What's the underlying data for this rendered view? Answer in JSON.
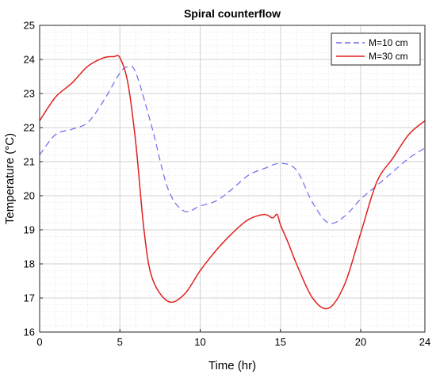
{
  "chart_data": {
    "type": "line",
    "title": "Spiral counterflow",
    "xlabel": "Time (hr)",
    "ylabel": "Temperature (°C)",
    "xlim": [
      0,
      24
    ],
    "ylim": [
      16,
      25
    ],
    "xticks": [
      0,
      5,
      10,
      15,
      20,
      24
    ],
    "yticks": [
      16,
      17,
      18,
      19,
      20,
      21,
      22,
      23,
      24,
      25
    ],
    "grid": true,
    "minor_grid": true,
    "legend_position": "top-right",
    "series": [
      {
        "name": "M=10 cm",
        "color": "#6b6bf0",
        "dash": "dashed",
        "x": [
          0,
          1,
          2,
          3,
          4,
          5,
          5.5,
          6,
          7,
          8,
          9,
          10,
          11,
          12,
          13,
          14,
          15,
          16,
          17,
          18,
          19,
          20,
          21,
          22,
          23,
          24
        ],
        "y": [
          21.2,
          21.8,
          21.95,
          22.15,
          22.8,
          23.6,
          23.78,
          23.6,
          22.0,
          20.2,
          19.55,
          19.7,
          19.85,
          20.2,
          20.6,
          20.8,
          20.95,
          20.75,
          19.8,
          19.2,
          19.4,
          19.9,
          20.3,
          20.7,
          21.1,
          21.4
        ]
      },
      {
        "name": "M=30 cm",
        "color": "#e0201f",
        "dash": "solid",
        "x": [
          0,
          1,
          2,
          3,
          4,
          4.6,
          5,
          5.5,
          6,
          6.5,
          7,
          8,
          9,
          10,
          11,
          12,
          13,
          14,
          14.5,
          14.8,
          15,
          15.5,
          16,
          17,
          18,
          19,
          20,
          21,
          22,
          23,
          24
        ],
        "y": [
          22.2,
          22.9,
          23.3,
          23.8,
          24.05,
          24.08,
          24.05,
          23.3,
          21.5,
          19.0,
          17.6,
          16.9,
          17.1,
          17.8,
          18.4,
          18.9,
          19.3,
          19.45,
          19.35,
          19.45,
          19.15,
          18.6,
          18.0,
          17.0,
          16.7,
          17.4,
          18.9,
          20.4,
          21.1,
          21.8,
          22.2
        ]
      }
    ]
  }
}
